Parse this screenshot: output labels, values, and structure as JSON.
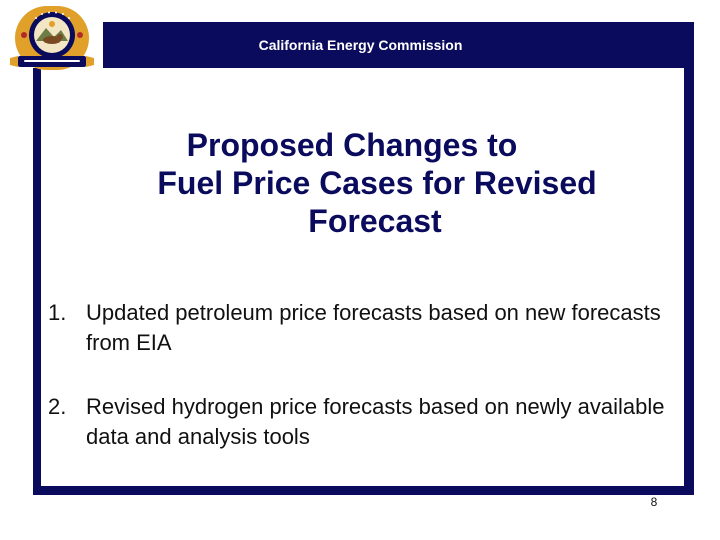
{
  "header": {
    "title": "California Energy Commission"
  },
  "logo": {
    "icon": "state-seal-icon",
    "top_text": "STATE OF CALIFORNIA",
    "bottom_text": "ENERGY COMMISSION",
    "colors": {
      "gold": "#e1a02a",
      "navy": "#0b0b5e",
      "red": "#b02a2a"
    }
  },
  "slide": {
    "title_lines": [
      "Proposed Changes to",
      "Fuel Price Cases for Revised",
      "Forecast"
    ],
    "items": [
      {
        "number": "1.",
        "text": "Updated petroleum price forecasts based on new forecasts from EIA"
      },
      {
        "number": "2.",
        "text": "Revised hydrogen price forecasts based on newly available data and analysis tools"
      }
    ],
    "page_number": "8"
  },
  "colors": {
    "frame": "#0b0b5e",
    "title": "#0b0b5e",
    "body_text": "#111111",
    "background": "#ffffff"
  }
}
